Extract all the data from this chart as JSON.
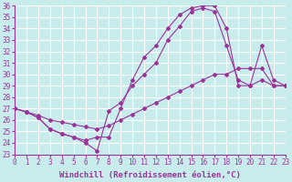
{
  "xlabel": "Windchill (Refroidissement éolien,°C)",
  "bg_color": "#c8ecec",
  "line_color": "#993399",
  "grid_color": "#ffffff",
  "xlim": [
    0,
    23
  ],
  "ylim": [
    23,
    36
  ],
  "xticks": [
    0,
    1,
    2,
    3,
    4,
    5,
    6,
    7,
    8,
    9,
    10,
    11,
    12,
    13,
    14,
    15,
    16,
    17,
    18,
    19,
    20,
    21,
    22,
    23
  ],
  "yticks": [
    23,
    24,
    25,
    26,
    27,
    28,
    29,
    30,
    31,
    32,
    33,
    34,
    35,
    36
  ],
  "line1_x": [
    0,
    1,
    2,
    3,
    4,
    5,
    6,
    7,
    8,
    9,
    10,
    11,
    12,
    13,
    14,
    15,
    16,
    17,
    18,
    19,
    20,
    21,
    22,
    23
  ],
  "line1_y": [
    27.0,
    26.7,
    26.4,
    26.0,
    25.8,
    25.6,
    25.4,
    25.2,
    25.5,
    26.0,
    26.5,
    27.0,
    27.5,
    28.0,
    28.5,
    29.0,
    29.5,
    30.0,
    30.0,
    30.5,
    30.5,
    30.5,
    29.0,
    29.0
  ],
  "line2_x": [
    0,
    1,
    2,
    3,
    4,
    5,
    6,
    7,
    8,
    9,
    10,
    11,
    12,
    13,
    14,
    15,
    16,
    17,
    18,
    19,
    20,
    21,
    22,
    23
  ],
  "line2_y": [
    27.0,
    26.7,
    26.2,
    25.2,
    24.8,
    24.5,
    24.0,
    23.3,
    26.8,
    27.5,
    29.0,
    30.0,
    31.0,
    33.0,
    34.2,
    35.5,
    35.8,
    35.5,
    32.5,
    29.5,
    29.0,
    29.5,
    29.0,
    29.0
  ],
  "line3_x": [
    0,
    1,
    2,
    3,
    4,
    5,
    6,
    7,
    8,
    9,
    10,
    11,
    12,
    13,
    14,
    15,
    16,
    17,
    18,
    19,
    20,
    21,
    22,
    23
  ],
  "line3_y": [
    27.0,
    26.7,
    26.2,
    25.2,
    24.8,
    24.5,
    24.2,
    24.5,
    24.5,
    27.0,
    29.5,
    31.5,
    32.5,
    34.0,
    35.2,
    35.8,
    36.0,
    36.0,
    34.0,
    29.0,
    29.0,
    32.5,
    29.5,
    29.0
  ],
  "marker": "D",
  "markersize": 2,
  "linewidth": 0.8,
  "tick_fontsize": 5.5,
  "xlabel_fontsize": 6.5
}
